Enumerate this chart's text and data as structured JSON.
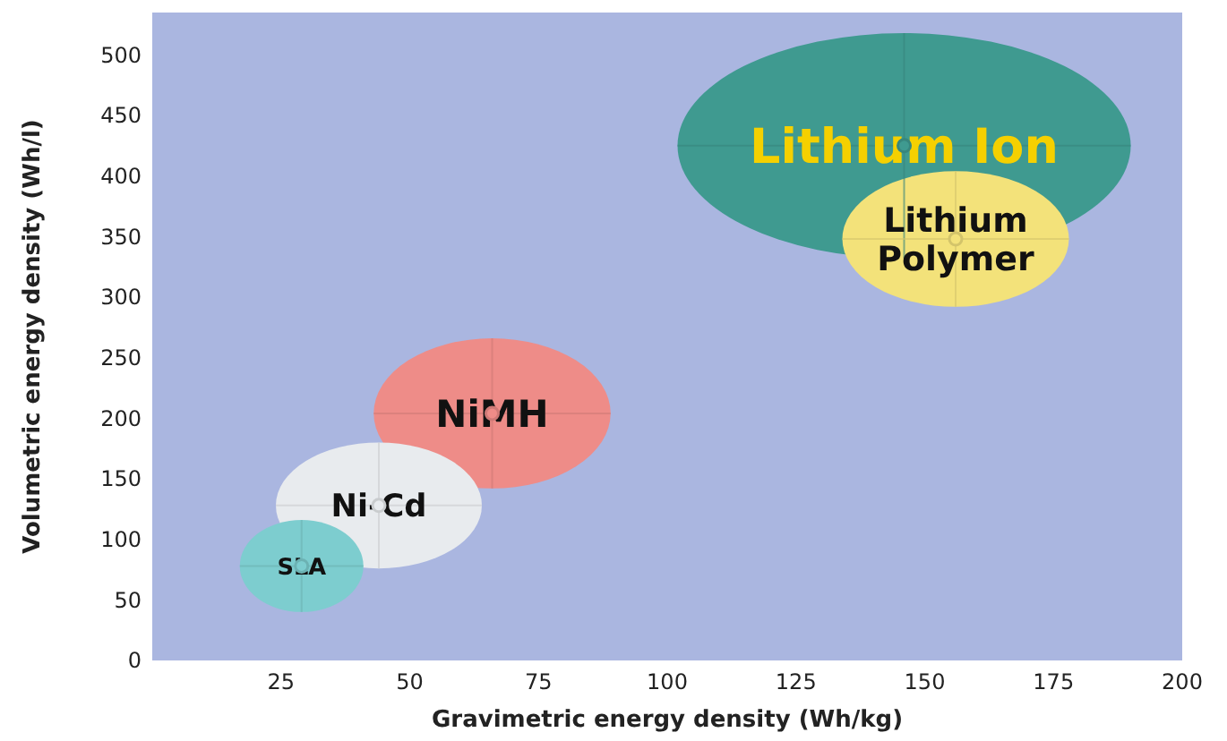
{
  "chart_data": {
    "type": "scatter",
    "xlabel": "Gravimetric energy density (Wh/kg)",
    "ylabel": "Volumetric energy density (Wh/l)",
    "xlim": [
      0,
      200
    ],
    "ylim": [
      0,
      535
    ],
    "xticks": [
      25,
      50,
      75,
      100,
      125,
      150,
      175,
      200
    ],
    "yticks": [
      0,
      50,
      100,
      150,
      200,
      250,
      300,
      350,
      400,
      450,
      500
    ],
    "grid": false,
    "legend": false,
    "series": [
      {
        "name": "Lithium Ion",
        "color": "#3f9a90",
        "x": [
          146
        ],
        "values": [
          425
        ],
        "xerrors": [
          44
        ],
        "errors": [
          93
        ]
      },
      {
        "name": "Lithium Polymer",
        "color": "#f3e27a",
        "x": [
          156
        ],
        "values": [
          348
        ],
        "xerrors": [
          22
        ],
        "errors": [
          56
        ]
      },
      {
        "name": "NiMH",
        "color": "#ee8c88",
        "x": [
          66
        ],
        "values": [
          204
        ],
        "xerrors": [
          23
        ],
        "errors": [
          62
        ]
      },
      {
        "name": "Ni-Cd",
        "color": "#e8ebee",
        "x": [
          44
        ],
        "values": [
          128
        ],
        "xerrors": [
          20
        ],
        "errors": [
          52
        ]
      },
      {
        "name": "SLA",
        "color": "#7dcdcf",
        "x": [
          29
        ],
        "values": [
          78
        ],
        "xerrors": [
          12
        ],
        "errors": [
          38
        ]
      }
    ]
  }
}
